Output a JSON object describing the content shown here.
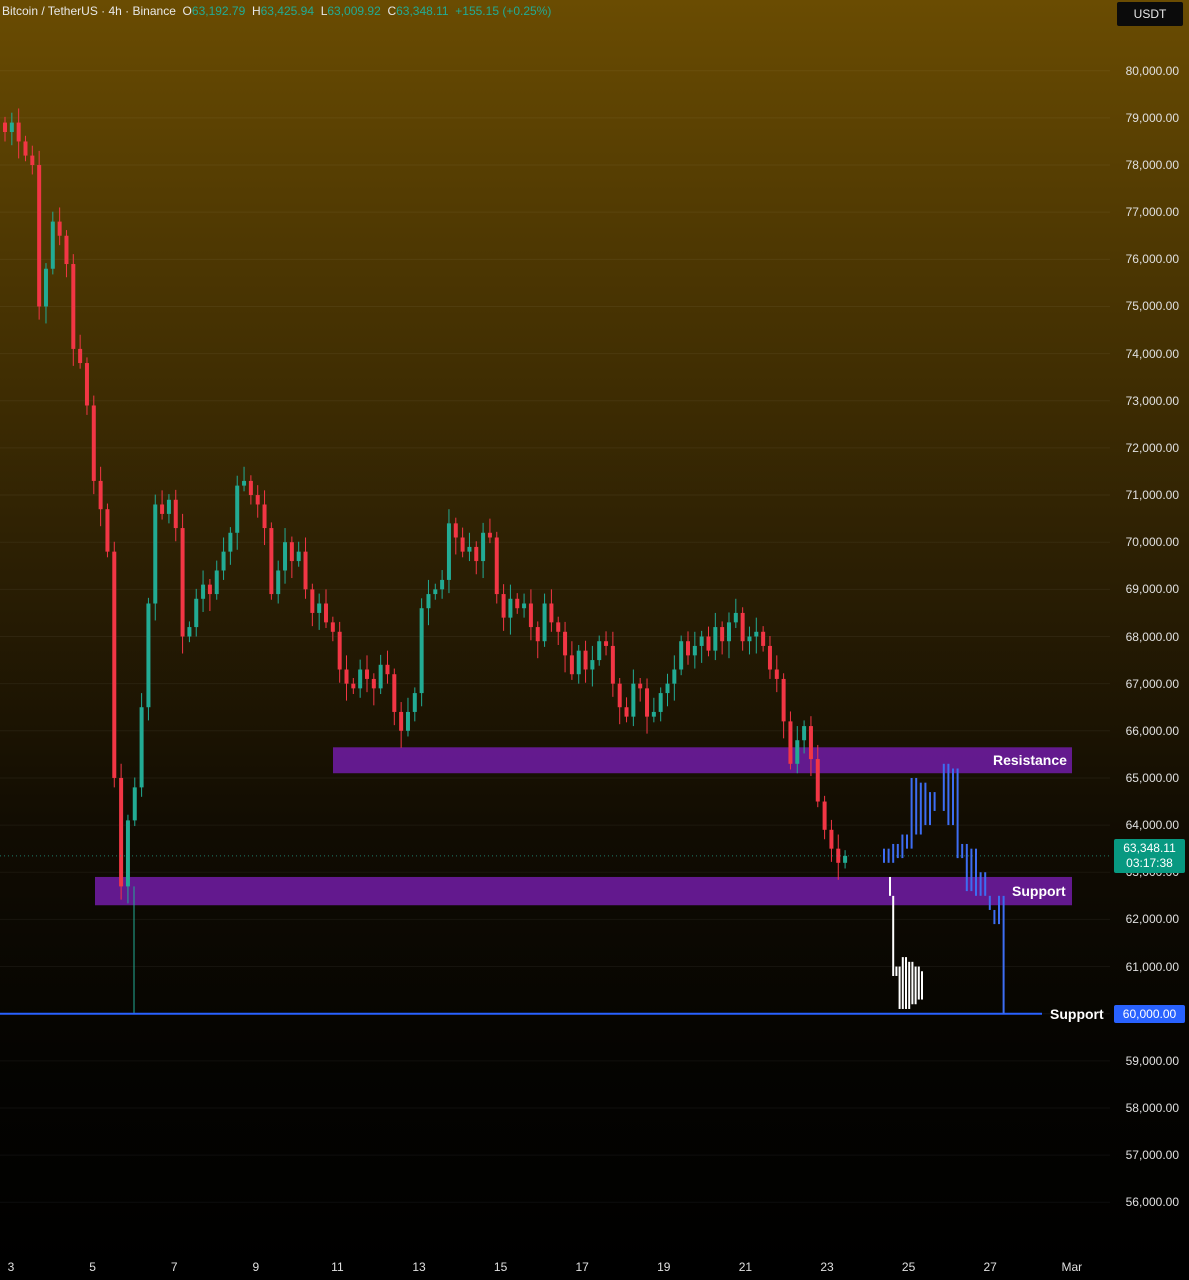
{
  "header": {
    "symbol": "Bitcoin / TetherUS · 4h · Binance",
    "open_label": "O",
    "open": "63,192.79",
    "high_label": "H",
    "high": "63,425.94",
    "low_label": "L",
    "low": "63,009.92",
    "close_label": "C",
    "close": "63,348.11",
    "change": "+155.15 (+0.25%)"
  },
  "currency": "USDT",
  "last_price": {
    "value": "63,348.11",
    "countdown": "03:17:38"
  },
  "colors": {
    "up": "#22ab94",
    "down": "#f23645",
    "zone": "#6a1b9a",
    "level_line": "#2962ff",
    "projection_white": "#ffffff",
    "projection_blue": "#3d6df2"
  },
  "chart_data": {
    "type": "candlestick",
    "title": "Bitcoin / TetherUS · 4h · Binance",
    "ylim": [
      55200,
      81500
    ],
    "y_ticks": [
      80000,
      79000,
      78000,
      77000,
      76000,
      75000,
      74000,
      73000,
      72000,
      71000,
      70000,
      69000,
      68000,
      67000,
      66000,
      65000,
      64000,
      63000,
      62000,
      61000,
      60000,
      59000,
      58000,
      57000,
      56000
    ],
    "y_tick_labels": [
      "80,000.00",
      "79,000.00",
      "78,000.00",
      "77,000.00",
      "76,000.00",
      "75,000.00",
      "74,000.00",
      "73,000.00",
      "72,000.00",
      "71,000.00",
      "70,000.00",
      "69,000.00",
      "68,000.00",
      "67,000.00",
      "66,000.00",
      "65,000.00",
      "64,000.00",
      "63,000.00",
      "62,000.00",
      "61,000.00",
      "60,000.00",
      "59,000.00",
      "58,000.00",
      "57,000.00",
      "56,000.00"
    ],
    "x_tick_labels": [
      "3",
      "5",
      "7",
      "9",
      "11",
      "13",
      "15",
      "17",
      "19",
      "21",
      "23",
      "25",
      "27",
      "Mar"
    ],
    "grid": true,
    "close_path": [
      78700,
      78900,
      78500,
      78200,
      78000,
      75000,
      75800,
      76800,
      76500,
      75900,
      74100,
      73800,
      72900,
      71300,
      70700,
      69800,
      65000,
      62700,
      64100,
      64800,
      66500,
      68700,
      70800,
      70600,
      70900,
      70300,
      68000,
      68200,
      68800,
      69100,
      68900,
      69400,
      69800,
      70200,
      71200,
      71300,
      71000,
      70800,
      70300,
      68900,
      69400,
      70000,
      69600,
      69800,
      69000,
      68500,
      68700,
      68300,
      68100,
      67300,
      67000,
      66900,
      67300,
      67100,
      66900,
      67400,
      67200,
      66400,
      66000,
      66400,
      66800,
      68600,
      68900,
      69000,
      69200,
      70400,
      70100,
      69800,
      69900,
      69600,
      70200,
      70100,
      68900,
      68400,
      68800,
      68600,
      68700,
      68200,
      67900,
      68700,
      68300,
      68100,
      67600,
      67200,
      67700,
      67300,
      67500,
      67900,
      67800,
      67000,
      66500,
      66300,
      67000,
      66900,
      66300,
      66400,
      66800,
      67000,
      67300,
      67900,
      67600,
      67800,
      68000,
      67700,
      68200,
      67900,
      68300,
      68500,
      67900,
      68000,
      68100,
      67800,
      67300,
      67100,
      66200,
      65300,
      65800,
      66100,
      65400,
      64500,
      63900,
      63500,
      63200,
      63348
    ],
    "zones": [
      {
        "label": "Resistance",
        "low": 65100,
        "high": 65650
      },
      {
        "label": "Support",
        "low": 62300,
        "high": 62900
      }
    ],
    "level_line": {
      "label": "Support",
      "value": 60000
    },
    "projection_white": [
      62900,
      62500,
      60800,
      61000,
      60100,
      61200,
      60100,
      61100,
      60200,
      61000,
      60300,
      60900
    ],
    "projection_blue": [
      63200,
      63500,
      63200,
      63600,
      63300,
      63800,
      63500,
      65000,
      63800,
      64900,
      64000,
      64700,
      64300,
      64300,
      65300,
      64000,
      65200,
      63300,
      63600,
      62600,
      63500,
      62500,
      63000,
      62500,
      62200,
      61900,
      62500,
      60000
    ]
  }
}
